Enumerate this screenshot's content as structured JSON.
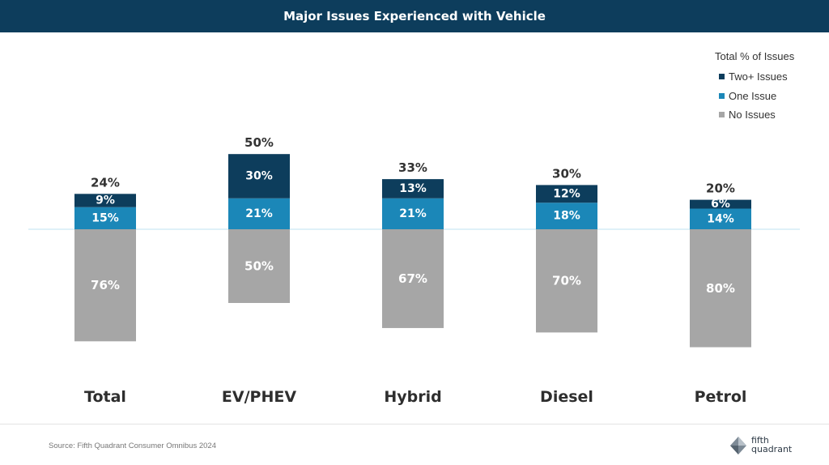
{
  "title": "Major Issues Experienced with Vehicle",
  "legend": {
    "heading": "Total % of Issues",
    "items": [
      {
        "label": "Two+ Issues",
        "color": "#0d3d5c"
      },
      {
        "label": "One Issue",
        "color": "#1b87b8"
      },
      {
        "label": "No Issues",
        "color": "#a6a6a6"
      }
    ]
  },
  "chart_data": {
    "type": "bar",
    "subtype": "diverging-stacked",
    "categories": [
      "Total",
      "EV/PHEV",
      "Hybrid",
      "Diesel",
      "Petrol"
    ],
    "series": [
      {
        "name": "Two+ Issues",
        "direction": "up",
        "color": "#0d3d5c",
        "values": [
          9,
          30,
          13,
          12,
          6
        ],
        "labels": [
          "9%",
          "30%",
          "13%",
          "12%",
          "6%"
        ]
      },
      {
        "name": "One Issue",
        "direction": "up",
        "color": "#1b87b8",
        "values": [
          15,
          21,
          21,
          18,
          14
        ],
        "labels": [
          "15%",
          "21%",
          "21%",
          "18%",
          "14%"
        ]
      },
      {
        "name": "No Issues",
        "direction": "down",
        "color": "#a6a6a6",
        "values": [
          76,
          50,
          67,
          70,
          80
        ],
        "labels": [
          "76%",
          "50%",
          "67%",
          "70%",
          "80%"
        ]
      }
    ],
    "totals": [
      24,
      50,
      33,
      30,
      20
    ],
    "total_labels": [
      "24%",
      "50%",
      "33%",
      "30%",
      "20%"
    ],
    "baseline_color": "#bfe3f2",
    "legend_position": "top-right",
    "grid": false
  },
  "footer": {
    "source": "Source: Fifth Quadrant Consumer Omnibus 2024",
    "logo_line1": "fifth",
    "logo_line2": "quadrant"
  }
}
